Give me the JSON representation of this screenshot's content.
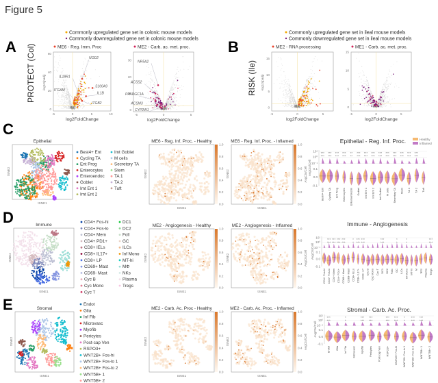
{
  "figure_title": "Figure 5",
  "panel_letters": {
    "a": "A",
    "b": "B",
    "c": "C",
    "d": "D",
    "e": "E"
  },
  "colors": {
    "up": "#f2a900",
    "down": "#7a1a7a",
    "healthy": "#f5b971",
    "inflamed": "#c27bc6",
    "heat": "#d9772a"
  },
  "panel_a": {
    "row_label": "PROTECT (Col)",
    "legend": [
      "Commonly upregulated gene set in colonic mouse models",
      "Commonly downregulated gene set in colonic mouse models"
    ],
    "plots": [
      {
        "title": "ME6 - Reg. Imm. Proc",
        "module_color": "#e8402a",
        "xlabel": "log2FoldChange",
        "ylabel": "-log10(padj)",
        "xticks": [
          "-5",
          "0",
          "5",
          "10"
        ],
        "yticks": [
          "0",
          "20",
          "40",
          "60"
        ],
        "xlim": [
          -5,
          10
        ],
        "ylim": [
          -2,
          62
        ],
        "genes": [
          {
            "name": "NOD2",
            "x": 2.5,
            "y": 33
          },
          {
            "name": "IL18R1",
            "x": 1.5,
            "y": 17
          },
          {
            "name": "ITGAM",
            "x": 0.5,
            "y": 10
          },
          {
            "name": "S100A9",
            "x": 5.2,
            "y": 23
          },
          {
            "name": "IL1B",
            "x": 3.5,
            "y": 14
          },
          {
            "name": "ITGB2",
            "x": 2.5,
            "y": 9
          }
        ]
      },
      {
        "title": "ME2 - Carb. ac. met. proc.",
        "module_color": "#d0245a",
        "xlabel": "log2FoldChange",
        "ylabel": "",
        "xticks": [
          "-5",
          "0",
          "5"
        ],
        "yticks": [
          "0",
          "10",
          "20",
          "30"
        ],
        "xlim": [
          -5.5,
          5.5
        ],
        "ylim": [
          -1,
          35
        ],
        "genes": [
          {
            "name": "NR5A2",
            "x": -1,
            "y": 15
          },
          {
            "name": "ACSS2",
            "x": -1.5,
            "y": 10
          },
          {
            "name": "PPARGC1A",
            "x": -1.5,
            "y": 6
          },
          {
            "name": "ACSM3",
            "x": -1.2,
            "y": 3
          },
          {
            "name": "CYP2W1",
            "x": -0.5,
            "y": 1.5
          }
        ]
      }
    ]
  },
  "panel_b": {
    "row_label": "RISK (Ile)",
    "legend": [
      "Commonly upregulated gene set in ileal mouse models",
      "Commonly downregulated gene set in ileal mouse models"
    ],
    "plots": [
      {
        "title": "ME2 - RNA processing",
        "module_color": "#e8402a",
        "xlabel": "log2FoldChange",
        "ylabel": "-log10(padj)",
        "xticks": [
          "-5",
          "0",
          "5"
        ],
        "yticks": [
          "0",
          "5",
          "10",
          "15"
        ],
        "xlim": [
          -5,
          7
        ],
        "ylim": [
          -1,
          17
        ],
        "genes": []
      },
      {
        "title": "ME1 - Carb. ac. met. proc.",
        "module_color": "#d0245a",
        "xlabel": "log2FoldChange",
        "ylabel": "",
        "xticks": [
          "-5",
          "0",
          "5"
        ],
        "yticks": [
          "0",
          "5",
          "10",
          "15"
        ],
        "xlim": [
          -5,
          7
        ],
        "ylim": [
          -1,
          15
        ],
        "genes": []
      }
    ]
  },
  "tsne_axes": {
    "x": "tSNE1",
    "y": "tSNE2"
  },
  "colorbar": {
    "ticks": [
      "0.0",
      "0.2",
      "0.4",
      "0.6",
      "0.8",
      "1.0"
    ],
    "label": "AvgCts/Cell"
  },
  "violin_common": {
    "ylabel": "AvgCts/Cell",
    "upper_ticks": [
      "10¹",
      "10⁰",
      "10⁻¹"
    ],
    "lower_ticks": [
      "0.1",
      "0.0",
      "-0.1"
    ],
    "legend": [
      "Healthy",
      "Inflamed"
    ]
  },
  "panel_c": {
    "cluster_title": "Epithelial",
    "heat_titles": [
      "ME6 - Reg. Inf. Proc. - Healthy",
      "ME6 - Reg. Inf. Proc. - Inflamed"
    ],
    "violin_title": "Epithelial - Reg. Inf. Proc.",
    "clusters": [
      {
        "name": "Best4+ Ent",
        "color": "#1f77b4"
      },
      {
        "name": "Cycling TA",
        "color": "#ff7f0e"
      },
      {
        "name": "Ent Prog",
        "color": "#279e68"
      },
      {
        "name": "Enterocytes",
        "color": "#d62728"
      },
      {
        "name": "Enteroendoc",
        "color": "#aa40fc"
      },
      {
        "name": "Goblet",
        "color": "#8c564b"
      },
      {
        "name": "Imt Ent 1",
        "color": "#e377c2"
      },
      {
        "name": "Imt Ent 2",
        "color": "#b5bd61"
      },
      {
        "name": "Imt Goblet",
        "color": "#17becf"
      },
      {
        "name": "M cells",
        "color": "#aec7e8"
      },
      {
        "name": "Secretory TA",
        "color": "#ffbb78"
      },
      {
        "name": "Stem",
        "color": "#98df8a"
      },
      {
        "name": "TA 1",
        "color": "#ff9896"
      },
      {
        "name": "TA 2",
        "color": "#c5b0d5"
      },
      {
        "name": "Tuft",
        "color": "#c49c94"
      }
    ],
    "legend_col1_count": 8,
    "violin_categories": [
      "Best4+ Ent",
      "Cycling TA",
      "Ent Prog",
      "Enterocytes",
      "Enteroendocrin",
      "Goblet",
      "Imt Ent 1",
      "Imt Ent 2",
      "Imt Goblet",
      "M cells",
      "Secretory TA",
      "Stem",
      "TA 1",
      "TA 2",
      "Tuft"
    ],
    "significance": [
      "***",
      "***",
      "***",
      "***",
      "**",
      "***",
      "***",
      "***",
      "***",
      "***",
      "***",
      "***",
      "***",
      "***",
      ""
    ]
  },
  "panel_d": {
    "cluster_title": "Immune",
    "heat_titles": [
      "ME2 - Angiogenesis - Healthy",
      "ME2 - Angiogenesis - Inflamed"
    ],
    "violin_title": "Immune - Angiogenesis",
    "clusters": [
      {
        "name": "CD4+ Fos-hi",
        "color": "#023fa5"
      },
      {
        "name": "CD4+ Fos-lo",
        "color": "#7d87b9"
      },
      {
        "name": "CD4+ Mem",
        "color": "#bec1d4"
      },
      {
        "name": "CD4+ PD1+",
        "color": "#d6bcc0"
      },
      {
        "name": "CD8+ IELs",
        "color": "#bb7784"
      },
      {
        "name": "CD8+ IL17+",
        "color": "#8e063b"
      },
      {
        "name": "CD8+ LP",
        "color": "#4a6fe3"
      },
      {
        "name": "CD69+ Mast",
        "color": "#8595e1"
      },
      {
        "name": "CD69- Mast",
        "color": "#b5bbe3"
      },
      {
        "name": "Cyc B",
        "color": "#e6afb9"
      },
      {
        "name": "Cyc Mono",
        "color": "#e07b91"
      },
      {
        "name": "Cyc T",
        "color": "#d33f6a"
      },
      {
        "name": "DC1",
        "color": "#11c638"
      },
      {
        "name": "DC2",
        "color": "#8dd593"
      },
      {
        "name": "Foll",
        "color": "#c6dec7"
      },
      {
        "name": "GC",
        "color": "#ead3c6"
      },
      {
        "name": "ILCs",
        "color": "#f0b98d"
      },
      {
        "name": "Inf Mono",
        "color": "#ef9708"
      },
      {
        "name": "MT-hi",
        "color": "#0fcfc0"
      },
      {
        "name": "MΦ",
        "color": "#9cded6"
      },
      {
        "name": "NKs",
        "color": "#d5eae7"
      },
      {
        "name": "Plasma",
        "color": "#f3e1eb"
      },
      {
        "name": "Tregs",
        "color": "#f6c4e1"
      }
    ],
    "legend_col1_count": 12,
    "violin_categories": [
      "CD4+ Fos-hi",
      "CD4+ Fos-lo",
      "CD4+ Mem",
      "CD4+ PD1+",
      "CD69+ Mast",
      "CD69- Mast",
      "CD8+ IELs",
      "CD8+ IL17+",
      "CD8+ LP",
      "Cyc B",
      "Cyc Mono",
      "Cyc T",
      "DC1",
      "DC2",
      "Folic",
      "GC",
      "ILCs",
      "Inf Mono",
      "MT-hi",
      "M",
      "NKs",
      "Plasma",
      "Tregs"
    ],
    "significance": [
      "",
      "***",
      "***",
      "***",
      "***",
      "",
      "*",
      "***",
      "***",
      "",
      "",
      "",
      "***",
      "",
      "",
      "*",
      "",
      "*",
      "",
      "",
      "",
      "",
      "***"
    ]
  },
  "panel_e": {
    "cluster_title": "Stromal",
    "heat_titles": [
      "ME2 - Carb. Ac. Proc - Healthy",
      "ME2 - Carb. Ac. Proc. - Inflamed"
    ],
    "violin_title": "Stromal - Carb. Ac. Proc.",
    "clusters": [
      {
        "name": "Endot",
        "color": "#1f77b4"
      },
      {
        "name": "Glia",
        "color": "#ff7f0e"
      },
      {
        "name": "Inf Fib",
        "color": "#279e68"
      },
      {
        "name": "Microvasc",
        "color": "#d62728"
      },
      {
        "name": "Myofib",
        "color": "#aa40fc"
      },
      {
        "name": "Pericytes",
        "color": "#8c564b"
      },
      {
        "name": "Post-cap Ven",
        "color": "#e377c2"
      },
      {
        "name": "RSPO3+",
        "color": "#b5bd61"
      },
      {
        "name": "WNT2B+ Fos-hi",
        "color": "#17becf"
      },
      {
        "name": "WNT2B+ Fos-lo 1",
        "color": "#aec7e8"
      },
      {
        "name": "WNT2B+ Fos-lo 2",
        "color": "#ffbb78"
      },
      {
        "name": "WNT5B+ 1",
        "color": "#98df8a"
      },
      {
        "name": "WNT5B+ 2",
        "color": "#ff9896"
      }
    ],
    "legend_col1_count": 13,
    "violin_categories": [
      "Endot",
      "Glia",
      "Inf Fib",
      "Microvasc",
      "Myofib",
      "Pericytes",
      "Post-cap Ven",
      "RSPO3+",
      "WNT2B+ Fos-hi",
      "WNT2B+ Fos-lo 1",
      "WNT2B+ Fos-lo 2",
      "WNT5B+ 1",
      "WNT5B+ 2"
    ],
    "significance": [
      "***",
      "",
      "*",
      "",
      "***",
      "***",
      "",
      "***",
      "***",
      "*",
      "***",
      "***",
      ""
    ]
  }
}
